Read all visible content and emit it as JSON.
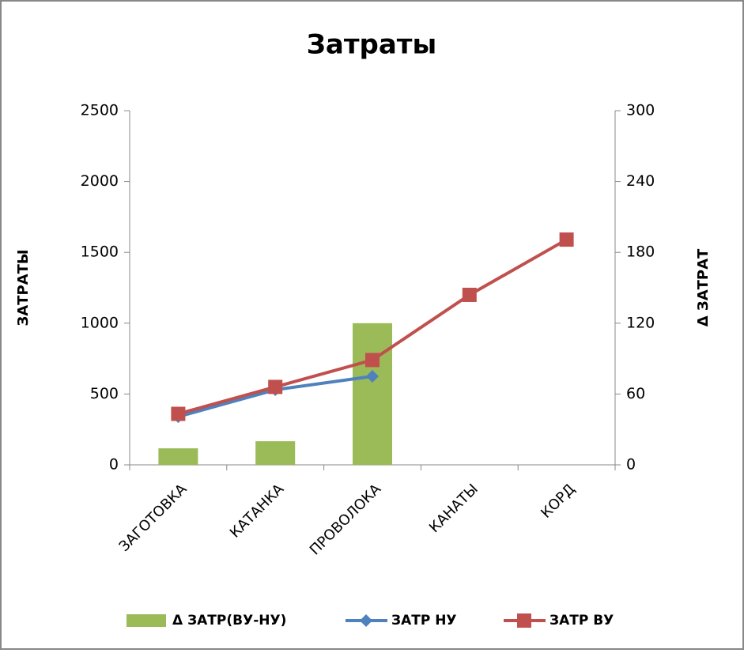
{
  "chart_data": {
    "type": "bar",
    "title": "Затраты",
    "y_label": "ЗАТРАТЫ",
    "y2_label": "Δ ЗАТРАТ",
    "categories": [
      "ЗАГОТОВКА",
      "КАТАНКА",
      "ПРОВОЛОКА",
      "КАНАТЫ",
      "КОРД"
    ],
    "series": [
      {
        "name": "Δ ЗАТР(ВУ-НУ)",
        "type": "bar",
        "axis": "y2",
        "color": "#9bbb59",
        "values": [
          14,
          20,
          120,
          null,
          null
        ]
      },
      {
        "name": "ЗАТР НУ",
        "type": "line",
        "marker": "diamond",
        "color": "#4f81bd",
        "values": [
          340,
          530,
          625,
          null,
          null
        ]
      },
      {
        "name": "ЗАТР ВУ",
        "type": "line",
        "marker": "square",
        "color": "#c0504d",
        "values": [
          360,
          550,
          740,
          1200,
          1590
        ]
      }
    ],
    "ylim": [
      0,
      2500
    ],
    "yticks": [
      0,
      500,
      1000,
      1500,
      2000,
      2500
    ],
    "y2lim": [
      0,
      300
    ],
    "y2ticks": [
      0,
      60,
      120,
      180,
      240,
      300
    ],
    "legend": "bottom"
  }
}
